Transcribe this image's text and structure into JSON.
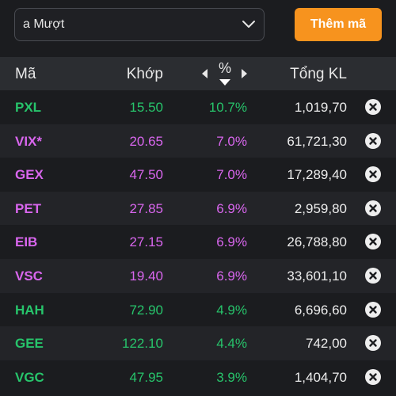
{
  "topbar": {
    "watchlist_selected": "a Mượt",
    "add_button_label": "Thêm mã"
  },
  "header": {
    "symbol": "Mã",
    "price": "Khớp",
    "percent": "%",
    "total_volume": "Tổng KL"
  },
  "colors": {
    "ceiling": "#d966ee",
    "up": "#27c46b",
    "accent": "#f7931e"
  },
  "rows": [
    {
      "symbol": "PXL",
      "price": "15.50",
      "percent": "10.7%",
      "volume": "1,019,70",
      "status": "up"
    },
    {
      "symbol": "VIX*",
      "price": "20.65",
      "percent": "7.0%",
      "volume": "61,721,30",
      "status": "ceiling"
    },
    {
      "symbol": "GEX",
      "price": "47.50",
      "percent": "7.0%",
      "volume": "17,289,40",
      "status": "ceiling"
    },
    {
      "symbol": "PET",
      "price": "27.85",
      "percent": "6.9%",
      "volume": "2,959,80",
      "status": "ceiling"
    },
    {
      "symbol": "EIB",
      "price": "27.15",
      "percent": "6.9%",
      "volume": "26,788,80",
      "status": "ceiling"
    },
    {
      "symbol": "VSC",
      "price": "19.40",
      "percent": "6.9%",
      "volume": "33,601,10",
      "status": "ceiling"
    },
    {
      "symbol": "HAH",
      "price": "72.90",
      "percent": "4.9%",
      "volume": "6,696,60",
      "status": "up"
    },
    {
      "symbol": "GEE",
      "price": "122.10",
      "percent": "4.4%",
      "volume": "742,00",
      "status": "up"
    },
    {
      "symbol": "VGC",
      "price": "47.95",
      "percent": "3.9%",
      "volume": "1,404,70",
      "status": "up"
    }
  ]
}
